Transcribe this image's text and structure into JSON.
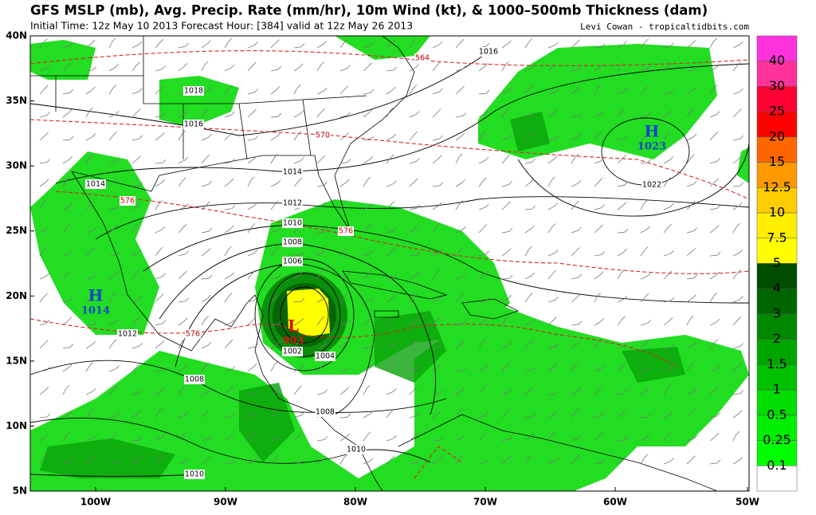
{
  "header": {
    "title": "GFS MSLP (mb), Avg. Precip. Rate (mm/hr), 10m Wind (kt), & 1000–500mb Thickness (dam)",
    "subtitle": "Initial Time: 12z May 10 2013 Forecast Hour: [384] valid at 12z May 26 2013",
    "credit": "Levi Cowan - tropicaltidbits.com"
  },
  "axes": {
    "lat_labels": [
      "40N",
      "35N",
      "30N",
      "25N",
      "20N",
      "15N",
      "10N",
      "5N"
    ],
    "lon_labels": [
      "100W",
      "90W",
      "80W",
      "70W",
      "60W",
      "50W"
    ]
  },
  "colorbar": {
    "labels": [
      "40",
      "30",
      "25",
      "20",
      "15",
      "12.5",
      "10",
      "7.5",
      "5",
      "4",
      "3",
      "2",
      "1.5",
      "1",
      "0.5",
      "0.25",
      "0.1"
    ]
  },
  "map": {
    "isobar_labels": [
      "1016",
      "1018",
      "1016",
      "1014",
      "1014",
      "1012",
      "1010",
      "1008",
      "1006",
      "1002",
      "1004",
      "1008",
      "1008",
      "1010",
      "1012",
      "1010",
      "1022"
    ],
    "thickness_labels": [
      "564",
      "570",
      "576",
      "576",
      "576"
    ],
    "pressure_centers": [
      {
        "letter": "H",
        "value": "1014"
      },
      {
        "letter": "H",
        "value": "1023"
      },
      {
        "letter": "L",
        "value": "993"
      }
    ]
  }
}
